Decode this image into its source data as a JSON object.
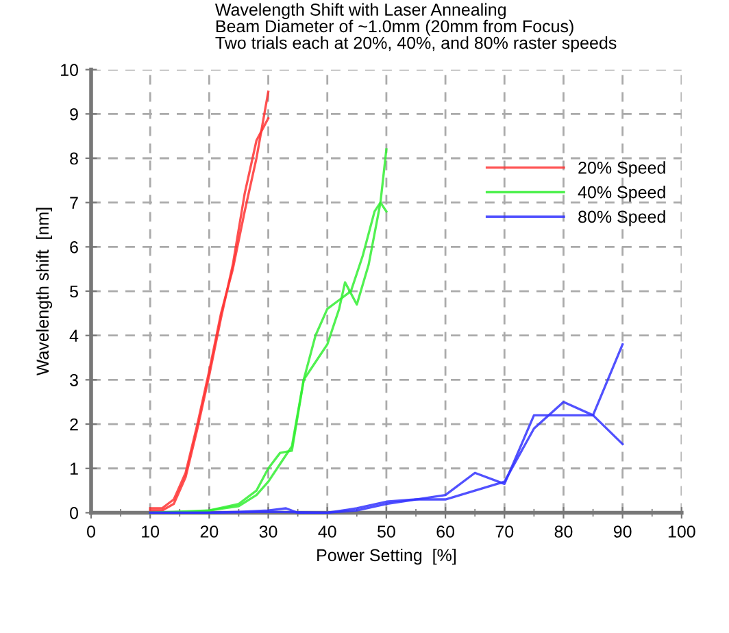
{
  "chart_data": {
    "type": "line",
    "title": "Wavelength Shift with Laser Annealing",
    "subtitle": "Beam Diameter of ~1.0mm (20mm from Focus)\nTwo trials each at 20%, 40%, and 80% raster speeds",
    "xlabel": "Power Setting  [%]",
    "ylabel": "Wavelength shift  [nm]",
    "xlim": [
      0,
      100
    ],
    "xticks": [
      0,
      {
        "value": 5,
        "label": null
      },
      10,
      {
        "value": 15,
        "label": null
      },
      20,
      {
        "value": 25,
        "label": null
      },
      30,
      {
        "value": 35,
        "label": null
      },
      40,
      {
        "value": 45,
        "label": null
      },
      50,
      {
        "value": 55,
        "label": null
      },
      60,
      {
        "value": 65,
        "label": null
      },
      70,
      {
        "value": 75,
        "label": null
      },
      80,
      {
        "value": 85,
        "label": null
      },
      90,
      {
        "value": 95,
        "label": null
      },
      100
    ],
    "ylim": [
      0,
      10
    ],
    "yticks": [
      0,
      1,
      2,
      3,
      4,
      5,
      6,
      7,
      8,
      9,
      10
    ],
    "grid": true,
    "legend": "right",
    "line_style": "solid",
    "series": [
      {
        "name": "20% Speed",
        "color": "#ff3333",
        "x": [
          10,
          12,
          14,
          16,
          18,
          20,
          22,
          24,
          26,
          28,
          30
        ],
        "values": [
          0.1,
          0.1,
          0.3,
          0.9,
          2.0,
          3.2,
          4.5,
          5.5,
          6.8,
          8.0,
          9.5
        ]
      },
      {
        "color": "#ff3333",
        "x": [
          10,
          12,
          14,
          16,
          18,
          20,
          22,
          24,
          26,
          28,
          30
        ],
        "values": [
          0.05,
          0.05,
          0.2,
          0.8,
          1.9,
          3.1,
          4.4,
          5.6,
          7.2,
          8.4,
          8.9
        ]
      },
      {
        "name": "40% Speed",
        "color": "#33ee33",
        "x": [
          10,
          15,
          20,
          25,
          28,
          30,
          32,
          34,
          36,
          38,
          40,
          42,
          43,
          45,
          47,
          48,
          49,
          50
        ],
        "values": [
          0,
          0,
          0.05,
          0.2,
          0.5,
          1.0,
          1.35,
          1.4,
          3.0,
          3.4,
          3.8,
          4.6,
          5.2,
          4.7,
          5.6,
          6.3,
          7.0,
          6.8
        ]
      },
      {
        "color": "#33ee33",
        "x": [
          10,
          20,
          25,
          28,
          30,
          32,
          34,
          36,
          38,
          40,
          42,
          44,
          46,
          48,
          49,
          50
        ],
        "values": [
          0,
          0.05,
          0.15,
          0.4,
          0.7,
          1.1,
          1.5,
          3.0,
          4.0,
          4.6,
          4.8,
          5.0,
          5.8,
          6.8,
          7.0,
          8.2
        ]
      },
      {
        "name": "80% Speed",
        "color": "#3333ff",
        "x": [
          10,
          15,
          20,
          25,
          30,
          33,
          35,
          40,
          45,
          50,
          55,
          60,
          65,
          70,
          75,
          80,
          85,
          90
        ],
        "values": [
          0,
          0,
          0,
          0.02,
          0.05,
          0.1,
          0,
          0,
          0.05,
          0.2,
          0.3,
          0.4,
          0.9,
          0.65,
          2.2,
          2.2,
          2.2,
          3.8
        ]
      },
      {
        "color": "#3333ff",
        "x": [
          10,
          15,
          20,
          30,
          40,
          45,
          50,
          55,
          60,
          65,
          70,
          75,
          80,
          85,
          90
        ],
        "values": [
          0,
          0,
          0,
          0.02,
          0,
          0.1,
          0.25,
          0.3,
          0.3,
          0.5,
          0.7,
          1.9,
          2.5,
          2.2,
          1.55
        ]
      }
    ]
  }
}
